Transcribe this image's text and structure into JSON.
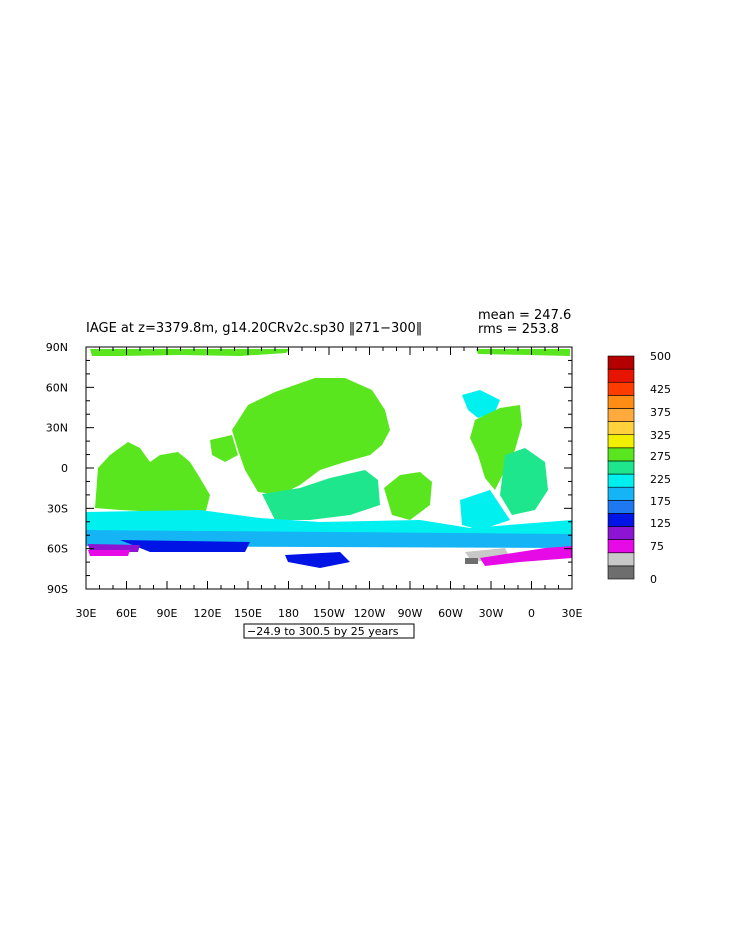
{
  "title": "IAGE at z=3379.8m, g14.20CRv2c.sp30 ‖271−300‖",
  "stats": {
    "mean": "mean = 247.6",
    "rms": "rms = 253.8"
  },
  "contour_info": "−24.9 to 300.5 by 25 years",
  "chart_data": {
    "type": "heatmap",
    "variable": "IAGE",
    "lon_labels": [
      "30E",
      "60E",
      "90E",
      "120E",
      "150E",
      "180",
      "150W",
      "120W",
      "90W",
      "60W",
      "30W",
      "0",
      "30E"
    ],
    "lat_labels": [
      "90N",
      "60N",
      "30N",
      "0",
      "30S",
      "60S",
      "90S"
    ],
    "xlim": [
      30,
      390
    ],
    "ylim": [
      -90,
      90
    ],
    "colorbar": {
      "labels": [
        "500",
        "425",
        "375",
        "325",
        "275",
        "225",
        "175",
        "125",
        "75",
        "0"
      ],
      "bins": [
        {
          "color": "#6e6e6e"
        },
        {
          "color": "#c8c8c8"
        },
        {
          "color": "#e60ae6"
        },
        {
          "color": "#8c14d2"
        },
        {
          "color": "#0014e6"
        },
        {
          "color": "#1e78f0"
        },
        {
          "color": "#14b4f5"
        },
        {
          "color": "#00f0f0"
        },
        {
          "color": "#1ee68c"
        },
        {
          "color": "#5ae61e"
        },
        {
          "color": "#f0f000"
        },
        {
          "color": "#ffd23c"
        },
        {
          "color": "#ffaa3c"
        },
        {
          "color": "#ff8c14"
        },
        {
          "color": "#ff3c00"
        },
        {
          "color": "#e61400"
        },
        {
          "color": "#b40000"
        }
      ]
    }
  }
}
